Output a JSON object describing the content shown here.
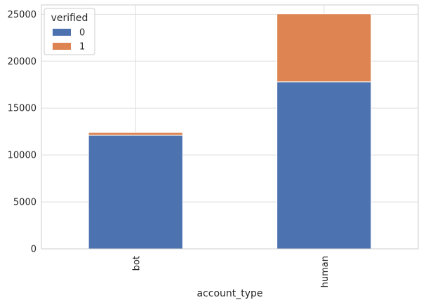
{
  "chart_data": {
    "type": "bar",
    "stacked": true,
    "categories": [
      "bot",
      "human"
    ],
    "series": [
      {
        "name": "0",
        "values": [
          12100,
          17800
        ],
        "color": "#4c72b0"
      },
      {
        "name": "1",
        "values": [
          300,
          7250
        ],
        "color": "#dd8452"
      }
    ],
    "xlabel": "account_type",
    "ylabel": "",
    "ylim": [
      0,
      26000
    ],
    "yticks": [
      0,
      5000,
      10000,
      15000,
      20000,
      25000
    ],
    "grid": true,
    "x_tick_rotation": "vertical",
    "legend": {
      "title": "verified",
      "placement": "top-left"
    }
  }
}
